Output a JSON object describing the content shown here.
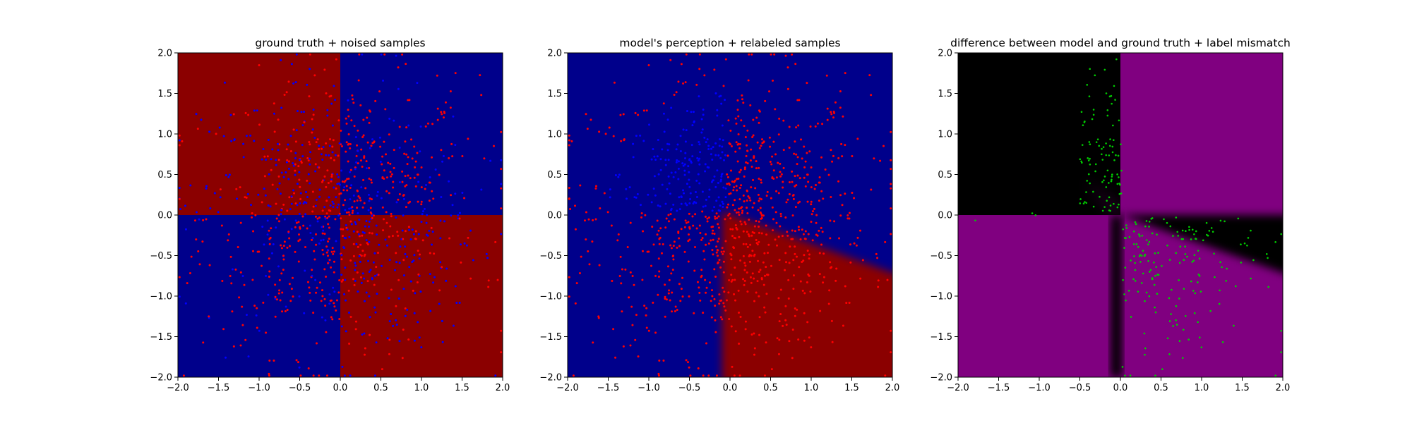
{
  "figure": {
    "background": "#ffffff",
    "colors": {
      "dark_blue": "#00008b",
      "dark_red": "#8b0000",
      "purple": "#800080",
      "black": "#000000",
      "point_red": "#ff0000",
      "point_blue": "#0000ff",
      "point_green": "#00cc00"
    }
  },
  "chart_data": [
    {
      "type": "heatmap",
      "title": "ground truth + noised samples",
      "xlim": [
        -2.0,
        2.0
      ],
      "ylim": [
        -2.0,
        2.0
      ],
      "xticks": [
        "−2.0",
        "−1.5",
        "−1.0",
        "−0.5",
        "0.0",
        "0.5",
        "1.0",
        "1.5",
        "2.0"
      ],
      "yticks": [
        "−2.0",
        "−1.5",
        "−1.0",
        "−0.5",
        "0.0",
        "0.5",
        "1.0",
        "1.5",
        "2.0"
      ],
      "grid": false,
      "regions": [
        {
          "quadrant": "x<0,y>0",
          "color": "#8b0000"
        },
        {
          "quadrant": "x>0,y>0",
          "color": "#00008b"
        },
        {
          "quadrant": "x<0,y<0",
          "color": "#00008b"
        },
        {
          "quadrant": "x>0,y<0",
          "color": "#8b0000"
        }
      ],
      "samples": {
        "kind": "scatter",
        "approx_count": 1000,
        "colors": [
          "#ff0000",
          "#0000ff"
        ],
        "distribution": "uniform over [-2,2]x[-2,2], denser near center, red/blue labels with noise"
      }
    },
    {
      "type": "heatmap",
      "title": "model's perception + relabeled samples",
      "xlim": [
        -2.0,
        2.0
      ],
      "ylim": [
        -2.0,
        2.0
      ],
      "xticks": [
        "−2.0",
        "−1.5",
        "−1.0",
        "−0.5",
        "0.0",
        "0.5",
        "1.0",
        "1.5",
        "2.0"
      ],
      "yticks": [
        "−2.0",
        "−1.5",
        "−1.0",
        "−0.5",
        "0.0",
        "0.5",
        "1.0",
        "1.5",
        "2.0"
      ],
      "grid": false,
      "regions": [
        {
          "area": "background",
          "color": "#00008b"
        },
        {
          "area": "wedge x>-0.1 below line y=-0.38x",
          "color": "#8b0000"
        }
      ],
      "samples": {
        "kind": "scatter",
        "approx_count": 1000,
        "colors": [
          "#ff0000",
          "#0000ff"
        ],
        "distribution": "blue cluster for x<0,y>0; red elsewhere"
      }
    },
    {
      "type": "heatmap",
      "title": "difference between model and ground truth + label mismatch",
      "xlim": [
        -2.0,
        2.0
      ],
      "ylim": [
        -2.0,
        2.0
      ],
      "xticks": [
        "−2.0",
        "−1.5",
        "−1.0",
        "−0.5",
        "0.0",
        "0.5",
        "1.0",
        "1.5",
        "2.0"
      ],
      "yticks": [
        "−2.0",
        "−1.5",
        "−1.0",
        "−0.5",
        "0.0",
        "0.5",
        "1.0",
        "1.5",
        "2.0"
      ],
      "grid": false,
      "regions": [
        {
          "quadrant": "x<0,y>0",
          "color": "#000000"
        },
        {
          "quadrant": "x>0,y>0",
          "color": "#800080"
        },
        {
          "quadrant": "x<0,y<0",
          "color": "#800080"
        },
        {
          "quadrant": "x>0,y<0 above line y=-0.38x",
          "color": "#000000"
        },
        {
          "quadrant": "x>0,y<0 below line y=-0.38x",
          "color": "#800080"
        }
      ],
      "samples": {
        "kind": "scatter",
        "approx_count": 300,
        "colors": [
          "#00cc00"
        ],
        "distribution": "mismatched samples near x in [-0.5,0] for y>0, and x>0,y<0"
      }
    }
  ]
}
